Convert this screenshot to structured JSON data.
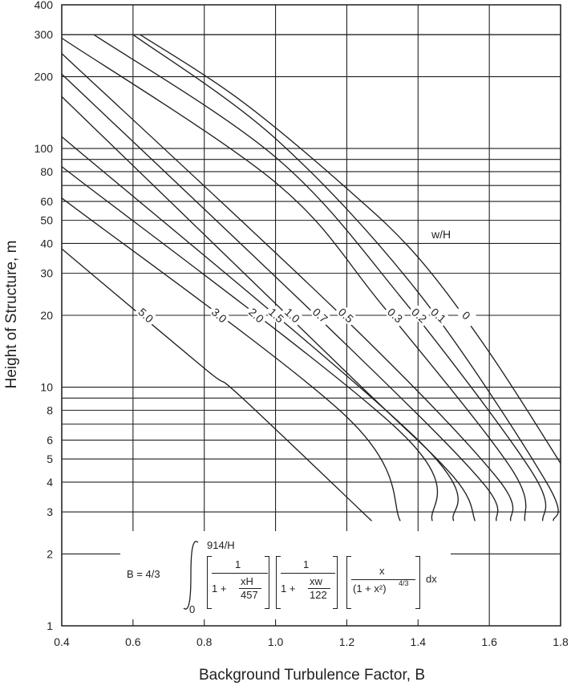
{
  "chart_data": {
    "type": "line",
    "title": "",
    "xlabel": "Background Turbulence Factor, B",
    "ylabel": "Height of Structure, m",
    "x_scale": "linear",
    "y_scale": "log",
    "xlim": [
      0.4,
      1.8
    ],
    "ylim": [
      1,
      400
    ],
    "grid": true,
    "xticks": [
      "0.4",
      "0.6",
      "0.8",
      "1.0",
      "1.2",
      "1.4",
      "1.6",
      "1.8"
    ],
    "yticks": [
      "1",
      "2",
      "3",
      "4",
      "5",
      "6",
      "8",
      "10",
      "20",
      "30",
      "40",
      "50",
      "60",
      "80",
      "100",
      "200",
      "300",
      "400"
    ],
    "legend_title": "w/H",
    "series": [
      {
        "name": "5.0",
        "x": [
          0.4,
          0.8,
          0.9,
          1.27
        ],
        "y": [
          38,
          12,
          9.2,
          2.75
        ]
      },
      {
        "name": "3.0",
        "x": [
          0.4,
          1.2,
          1.35
        ],
        "y": [
          62,
          7.5,
          2.75
        ]
      },
      {
        "name": "2.0",
        "x": [
          0.4,
          1.35,
          1.44
        ],
        "y": [
          84,
          6.5,
          2.75
        ]
      },
      {
        "name": "1.5",
        "x": [
          0.4,
          1.4,
          1.5
        ],
        "y": [
          112,
          6.0,
          2.75
        ]
      },
      {
        "name": "1.0",
        "x": [
          0.4,
          1.2,
          1.5,
          1.56
        ],
        "y": [
          165,
          11.5,
          4.2,
          2.75
        ]
      },
      {
        "name": "0.7",
        "x": [
          0.4,
          1.2,
          1.58,
          1.62
        ],
        "y": [
          205,
          15,
          4.0,
          2.75
        ]
      },
      {
        "name": "0.5",
        "x": [
          0.4,
          1.2,
          1.62,
          1.66
        ],
        "y": [
          250,
          19,
          4.2,
          2.75
        ]
      },
      {
        "name": "0.3",
        "x": [
          0.4,
          1.0,
          1.3,
          1.66,
          1.7
        ],
        "y": [
          290,
          72,
          22,
          4.6,
          2.75
        ]
      },
      {
        "name": "0.2",
        "x": [
          0.49,
          1.0,
          1.35,
          1.72,
          1.75
        ],
        "y": [
          300,
          92,
          24,
          4.4,
          2.75
        ]
      },
      {
        "name": "0.1",
        "x": [
          0.6,
          1.0,
          1.4,
          1.76,
          1.78
        ],
        "y": [
          300,
          110,
          25,
          4.0,
          2.75
        ]
      },
      {
        "name": "0",
        "x": [
          0.62,
          0.9,
          1.2,
          1.4,
          1.6,
          1.8
        ],
        "y": [
          300,
          160,
          68,
          35,
          14,
          4.8
        ]
      }
    ],
    "formula": {
      "lhs": "B = 4/3",
      "upper_limit": "914/H",
      "lower_limit": "0",
      "term1_num": "1",
      "term1_den_prefix": "1 +",
      "term1_frac_num": "xH",
      "term1_frac_den": "457",
      "term2_num": "1",
      "term2_den_prefix": "1 +",
      "term2_frac_num": "xw",
      "term2_frac_den": "122",
      "term3_num": "x",
      "term3_den": "(1 + x²)",
      "term3_den_exp": "4/3",
      "dx": "dx"
    }
  }
}
